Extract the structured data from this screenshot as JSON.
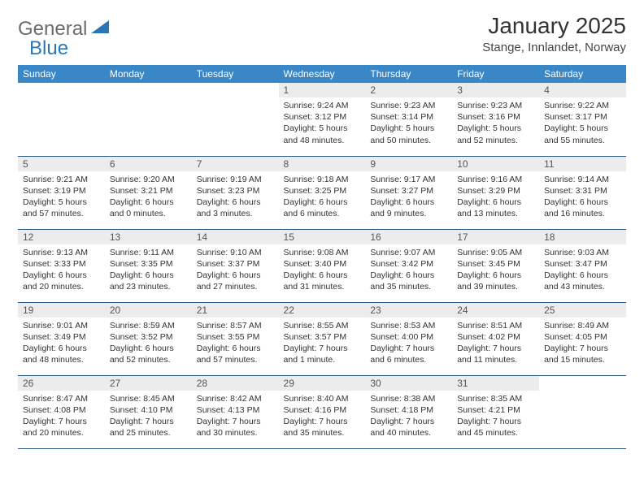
{
  "brand": {
    "general": "General",
    "blue": "Blue"
  },
  "title": "January 2025",
  "subtitle": "Stange, Innlandet, Norway",
  "colors": {
    "header_bg": "#3a87c7",
    "header_text": "#ffffff",
    "daynum_bg": "#ececec",
    "border": "#2a5a8a",
    "brand_gray": "#6b6b6b",
    "brand_blue": "#2a77b8"
  },
  "weekdays": [
    "Sunday",
    "Monday",
    "Tuesday",
    "Wednesday",
    "Thursday",
    "Friday",
    "Saturday"
  ],
  "weeks": [
    [
      null,
      null,
      null,
      {
        "n": "1",
        "sr": "9:24 AM",
        "ss": "3:12 PM",
        "dl": "5 hours and 48 minutes."
      },
      {
        "n": "2",
        "sr": "9:23 AM",
        "ss": "3:14 PM",
        "dl": "5 hours and 50 minutes."
      },
      {
        "n": "3",
        "sr": "9:23 AM",
        "ss": "3:16 PM",
        "dl": "5 hours and 52 minutes."
      },
      {
        "n": "4",
        "sr": "9:22 AM",
        "ss": "3:17 PM",
        "dl": "5 hours and 55 minutes."
      }
    ],
    [
      {
        "n": "5",
        "sr": "9:21 AM",
        "ss": "3:19 PM",
        "dl": "5 hours and 57 minutes."
      },
      {
        "n": "6",
        "sr": "9:20 AM",
        "ss": "3:21 PM",
        "dl": "6 hours and 0 minutes."
      },
      {
        "n": "7",
        "sr": "9:19 AM",
        "ss": "3:23 PM",
        "dl": "6 hours and 3 minutes."
      },
      {
        "n": "8",
        "sr": "9:18 AM",
        "ss": "3:25 PM",
        "dl": "6 hours and 6 minutes."
      },
      {
        "n": "9",
        "sr": "9:17 AM",
        "ss": "3:27 PM",
        "dl": "6 hours and 9 minutes."
      },
      {
        "n": "10",
        "sr": "9:16 AM",
        "ss": "3:29 PM",
        "dl": "6 hours and 13 minutes."
      },
      {
        "n": "11",
        "sr": "9:14 AM",
        "ss": "3:31 PM",
        "dl": "6 hours and 16 minutes."
      }
    ],
    [
      {
        "n": "12",
        "sr": "9:13 AM",
        "ss": "3:33 PM",
        "dl": "6 hours and 20 minutes."
      },
      {
        "n": "13",
        "sr": "9:11 AM",
        "ss": "3:35 PM",
        "dl": "6 hours and 23 minutes."
      },
      {
        "n": "14",
        "sr": "9:10 AM",
        "ss": "3:37 PM",
        "dl": "6 hours and 27 minutes."
      },
      {
        "n": "15",
        "sr": "9:08 AM",
        "ss": "3:40 PM",
        "dl": "6 hours and 31 minutes."
      },
      {
        "n": "16",
        "sr": "9:07 AM",
        "ss": "3:42 PM",
        "dl": "6 hours and 35 minutes."
      },
      {
        "n": "17",
        "sr": "9:05 AM",
        "ss": "3:45 PM",
        "dl": "6 hours and 39 minutes."
      },
      {
        "n": "18",
        "sr": "9:03 AM",
        "ss": "3:47 PM",
        "dl": "6 hours and 43 minutes."
      }
    ],
    [
      {
        "n": "19",
        "sr": "9:01 AM",
        "ss": "3:49 PM",
        "dl": "6 hours and 48 minutes."
      },
      {
        "n": "20",
        "sr": "8:59 AM",
        "ss": "3:52 PM",
        "dl": "6 hours and 52 minutes."
      },
      {
        "n": "21",
        "sr": "8:57 AM",
        "ss": "3:55 PM",
        "dl": "6 hours and 57 minutes."
      },
      {
        "n": "22",
        "sr": "8:55 AM",
        "ss": "3:57 PM",
        "dl": "7 hours and 1 minute."
      },
      {
        "n": "23",
        "sr": "8:53 AM",
        "ss": "4:00 PM",
        "dl": "7 hours and 6 minutes."
      },
      {
        "n": "24",
        "sr": "8:51 AM",
        "ss": "4:02 PM",
        "dl": "7 hours and 11 minutes."
      },
      {
        "n": "25",
        "sr": "8:49 AM",
        "ss": "4:05 PM",
        "dl": "7 hours and 15 minutes."
      }
    ],
    [
      {
        "n": "26",
        "sr": "8:47 AM",
        "ss": "4:08 PM",
        "dl": "7 hours and 20 minutes."
      },
      {
        "n": "27",
        "sr": "8:45 AM",
        "ss": "4:10 PM",
        "dl": "7 hours and 25 minutes."
      },
      {
        "n": "28",
        "sr": "8:42 AM",
        "ss": "4:13 PM",
        "dl": "7 hours and 30 minutes."
      },
      {
        "n": "29",
        "sr": "8:40 AM",
        "ss": "4:16 PM",
        "dl": "7 hours and 35 minutes."
      },
      {
        "n": "30",
        "sr": "8:38 AM",
        "ss": "4:18 PM",
        "dl": "7 hours and 40 minutes."
      },
      {
        "n": "31",
        "sr": "8:35 AM",
        "ss": "4:21 PM",
        "dl": "7 hours and 45 minutes."
      },
      null
    ]
  ],
  "labels": {
    "sunrise": "Sunrise:",
    "sunset": "Sunset:",
    "daylight": "Daylight:"
  }
}
